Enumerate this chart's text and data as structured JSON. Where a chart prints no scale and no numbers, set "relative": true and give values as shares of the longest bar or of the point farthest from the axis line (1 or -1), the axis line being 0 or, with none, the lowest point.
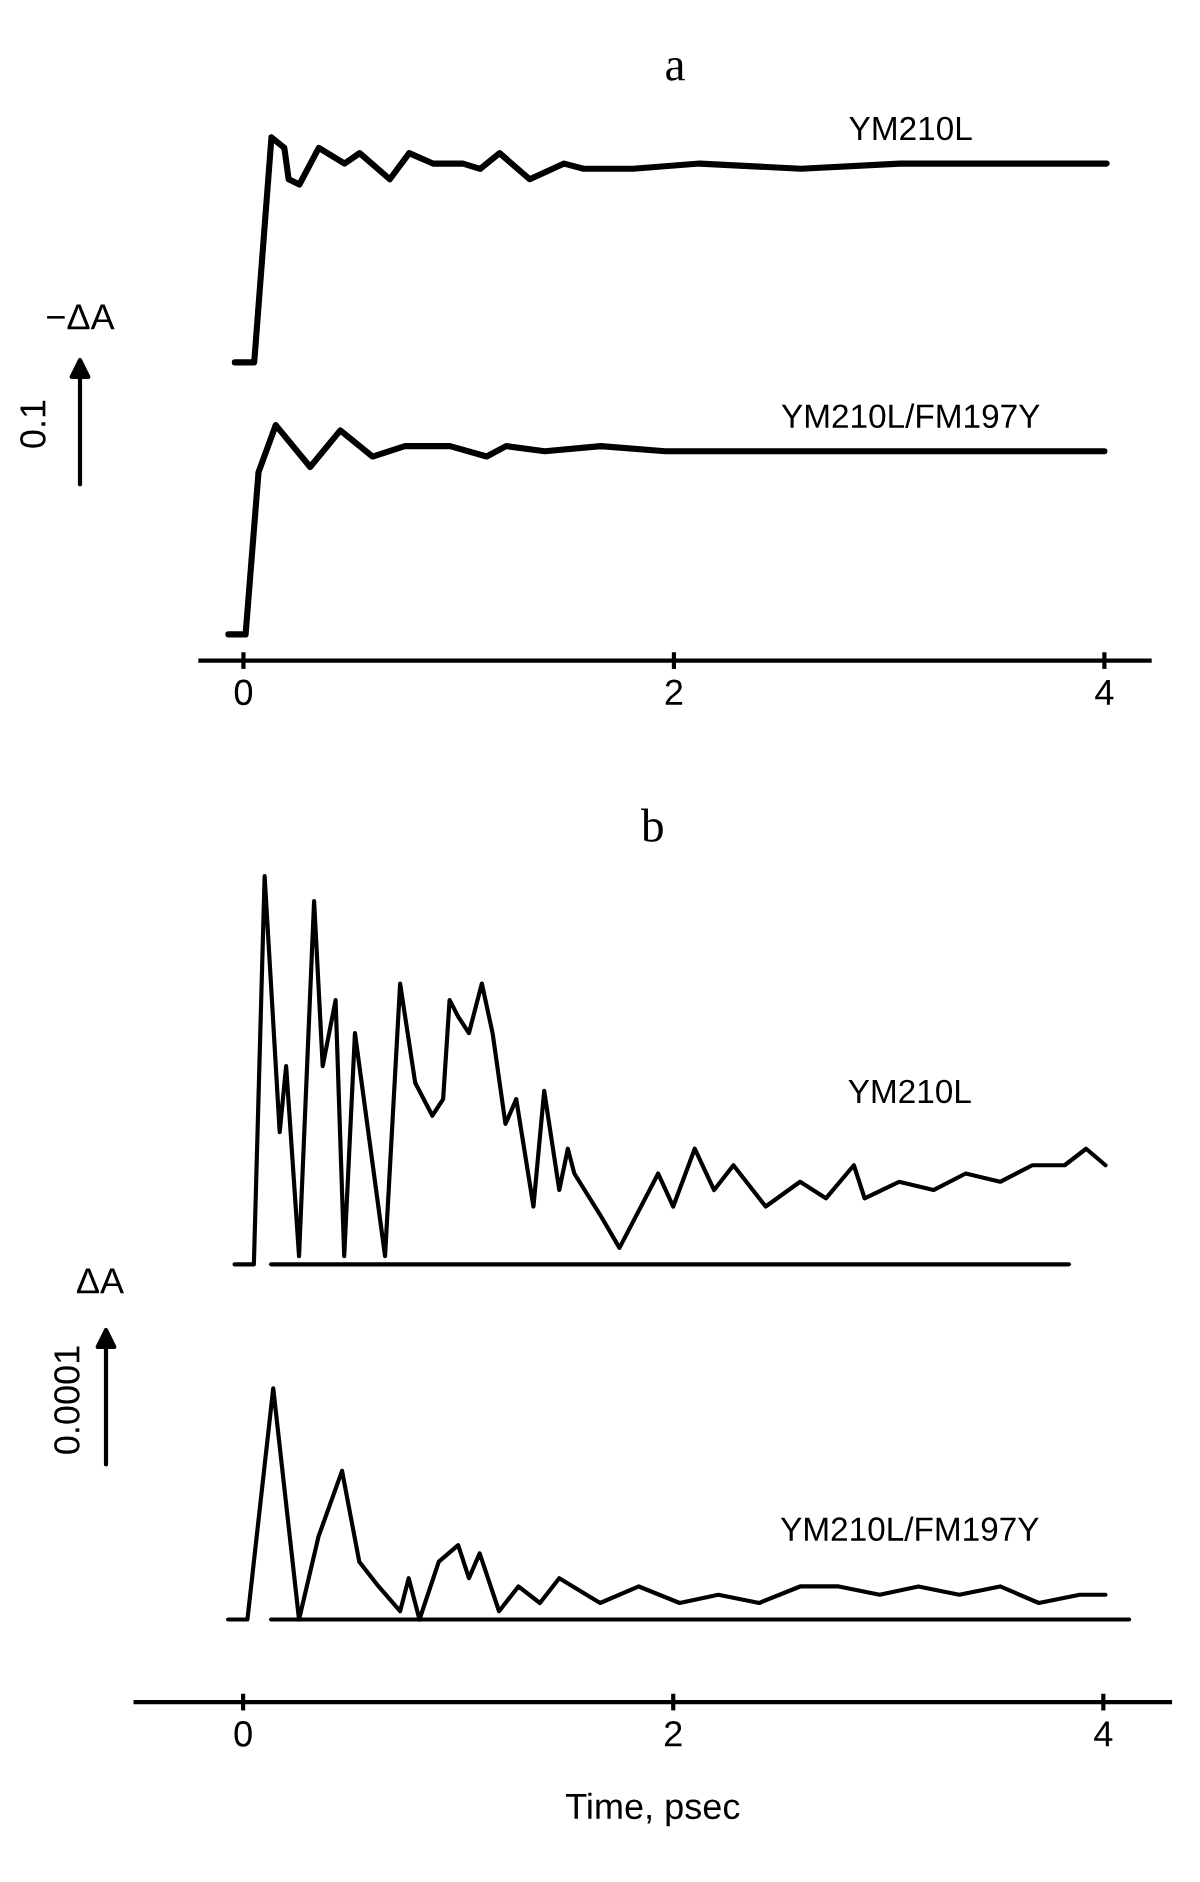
{
  "chart_data": [
    {
      "type": "line",
      "title": "a",
      "relative": true,
      "xlim": [
        -0.2,
        4.21
      ],
      "xticks": [
        0,
        2,
        4
      ],
      "grid": false,
      "legend": false,
      "marker": "none",
      "line_style": "solid",
      "annotations": [
        "−ΔA",
        "0.1"
      ],
      "series": [
        {
          "name": "YM210L",
          "color": "#000000",
          "x": [
            -0.04,
            0.05,
            0.13,
            0.19,
            0.21,
            0.26,
            0.35,
            0.47,
            0.54,
            0.68,
            0.77,
            0.88,
            1.02,
            1.1,
            1.19,
            1.33,
            1.49,
            1.58,
            1.81,
            2.12,
            2.59,
            3.05,
            3.52,
            4.01
          ],
          "values": [
            0.57,
            0.57,
            1.0,
            0.98,
            0.92,
            0.91,
            0.98,
            0.95,
            0.97,
            0.92,
            0.97,
            0.95,
            0.95,
            0.94,
            0.97,
            0.92,
            0.95,
            0.94,
            0.94,
            0.95,
            0.94,
            0.95,
            0.95,
            0.95
          ]
        },
        {
          "name": "YM210L/FM197Y",
          "color": "#000000",
          "x": [
            -0.07,
            0.01,
            0.07,
            0.15,
            0.31,
            0.45,
            0.6,
            0.75,
            0.96,
            1.13,
            1.22,
            1.4,
            1.66,
            1.96,
            2.89,
            4.0
          ],
          "values": [
            0.05,
            0.05,
            0.36,
            0.45,
            0.37,
            0.44,
            0.39,
            0.41,
            0.41,
            0.39,
            0.41,
            0.4,
            0.41,
            0.4,
            0.4,
            0.4
          ]
        }
      ]
    },
    {
      "type": "line",
      "title": "b",
      "xlabel": "Time, psec",
      "relative": true,
      "xlim": [
        -0.5,
        4.31
      ],
      "xticks": [
        0,
        2,
        4
      ],
      "grid": false,
      "legend": false,
      "marker": "none",
      "line_style": "solid",
      "annotations": [
        "ΔA",
        "0.0001"
      ],
      "series": [
        {
          "name": "YM210L",
          "color": "#000000",
          "x": [
            -0.04,
            0.05,
            0.1,
            0.17,
            0.2,
            0.26,
            0.33,
            0.37,
            0.43,
            0.47,
            0.52,
            0.66,
            0.73,
            0.8,
            0.88,
            0.93,
            0.96,
            1.0,
            1.05,
            1.11,
            1.16,
            1.22,
            1.27,
            1.35,
            1.4,
            1.47,
            1.51,
            1.54,
            1.66,
            1.75,
            1.93,
            2.0,
            2.1,
            2.19,
            2.28,
            2.43,
            2.59,
            2.71,
            2.84,
            2.89,
            3.05,
            3.21,
            3.36,
            3.52,
            3.67,
            3.82,
            3.92,
            4.01
          ],
          "values": [
            0.53,
            0.53,
            1.0,
            0.69,
            0.77,
            0.54,
            0.97,
            0.77,
            0.85,
            0.54,
            0.81,
            0.54,
            0.87,
            0.75,
            0.71,
            0.73,
            0.85,
            0.83,
            0.81,
            0.87,
            0.81,
            0.7,
            0.73,
            0.6,
            0.74,
            0.62,
            0.67,
            0.64,
            0.59,
            0.55,
            0.64,
            0.6,
            0.67,
            0.62,
            0.65,
            0.6,
            0.63,
            0.61,
            0.65,
            0.61,
            0.63,
            0.62,
            0.64,
            0.63,
            0.65,
            0.65,
            0.67,
            0.65
          ]
        },
        {
          "color": "#000000",
          "x": [
            0.13,
            3.84
          ],
          "values": [
            0.53,
            0.53
          ]
        },
        {
          "name": "YM210L/FM197Y",
          "color": "#000000",
          "x": [
            -0.07,
            0.02,
            0.14,
            0.26,
            0.35,
            0.46,
            0.54,
            0.63,
            0.73,
            0.77,
            0.82,
            0.91,
            1.0,
            1.05,
            1.1,
            1.19,
            1.28,
            1.38,
            1.47,
            1.66,
            1.84,
            2.03,
            2.21,
            2.4,
            2.59,
            2.77,
            2.96,
            3.14,
            3.33,
            3.52,
            3.7,
            3.89,
            4.01
          ],
          "values": [
            0.1,
            0.1,
            0.38,
            0.1,
            0.2,
            0.28,
            0.17,
            0.14,
            0.11,
            0.15,
            0.1,
            0.17,
            0.19,
            0.15,
            0.18,
            0.11,
            0.14,
            0.12,
            0.15,
            0.12,
            0.14,
            0.12,
            0.13,
            0.12,
            0.14,
            0.14,
            0.13,
            0.14,
            0.13,
            0.14,
            0.12,
            0.13,
            0.13
          ]
        },
        {
          "color": "#000000",
          "x": [
            0.13,
            4.12
          ],
          "values": [
            0.1,
            0.1
          ]
        }
      ]
    }
  ]
}
